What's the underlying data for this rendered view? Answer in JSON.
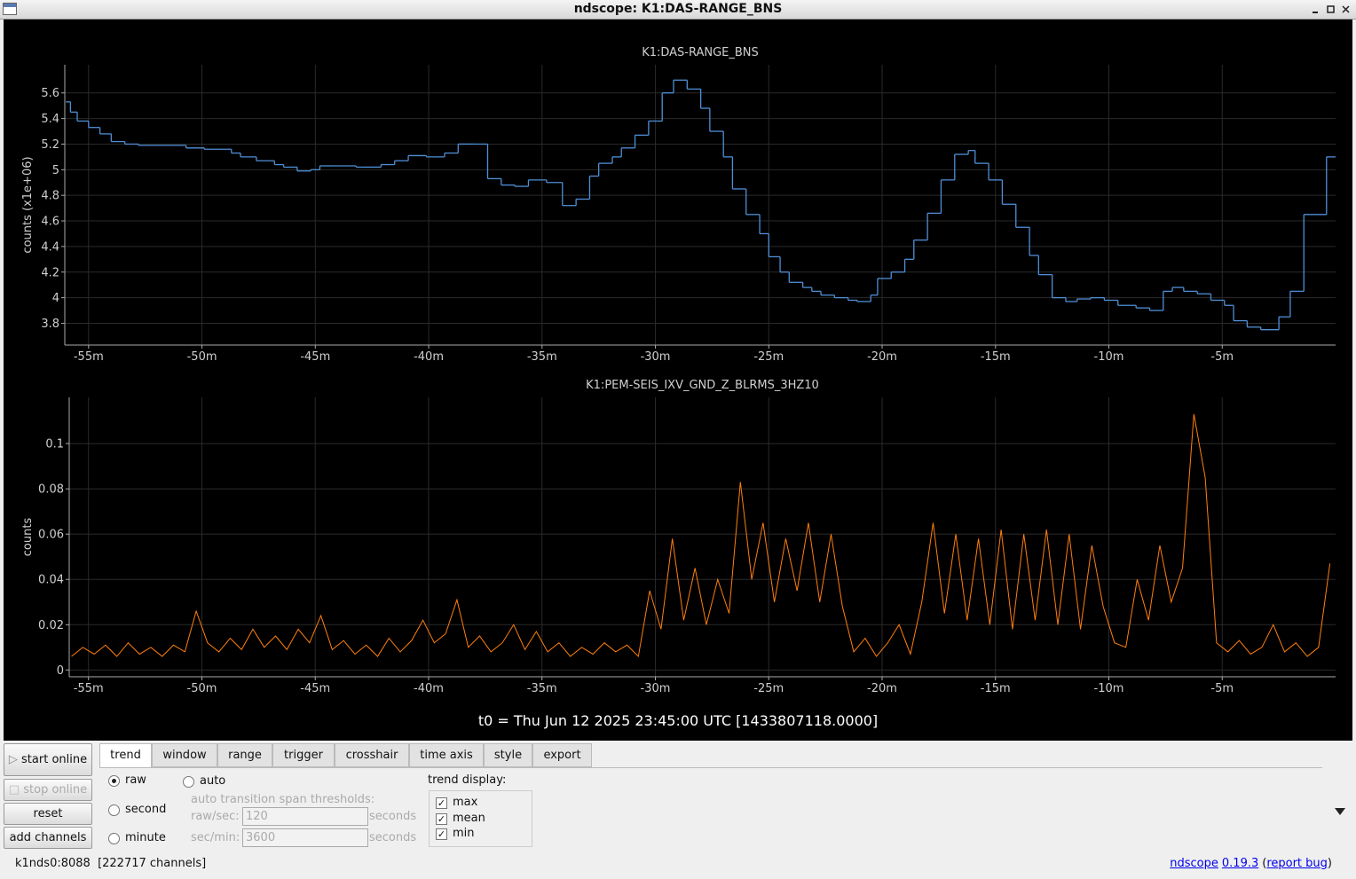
{
  "window": {
    "title": "ndscope: K1:DAS-RANGE_BNS"
  },
  "chart_data": [
    {
      "type": "step",
      "title": "K1:DAS-RANGE_BNS",
      "ylabel": "counts (x1e+06)",
      "color": "#4f8fd6",
      "x": [
        -56.0,
        -55.8,
        -55.5,
        -55.0,
        -54.5,
        -54.0,
        -53.4,
        -52.8,
        -50.7,
        -49.9,
        -48.7,
        -48.3,
        -47.6,
        -46.8,
        -46.4,
        -45.8,
        -45.2,
        -44.8,
        -44.2,
        -43.2,
        -42.9,
        -42.1,
        -41.5,
        -40.9,
        -40.1,
        -39.3,
        -38.7,
        -38.0,
        -37.4,
        -36.8,
        -36.2,
        -35.6,
        -34.8,
        -34.1,
        -33.5,
        -32.9,
        -32.5,
        -31.9,
        -31.5,
        -30.9,
        -30.3,
        -29.7,
        -29.2,
        -28.6,
        -28.0,
        -27.6,
        -27.0,
        -26.6,
        -26.0,
        -25.4,
        -25.0,
        -24.5,
        -24.1,
        -23.5,
        -23.1,
        -22.7,
        -22.1,
        -21.5,
        -21.1,
        -20.5,
        -20.2,
        -19.6,
        -19.0,
        -18.6,
        -18.0,
        -17.4,
        -16.8,
        -16.2,
        -15.9,
        -15.3,
        -14.7,
        -14.1,
        -13.5,
        -13.1,
        -12.5,
        -11.9,
        -11.4,
        -10.8,
        -10.2,
        -9.6,
        -8.8,
        -8.2,
        -7.6,
        -7.2,
        -6.7,
        -6.1,
        -5.5,
        -4.9,
        -4.5,
        -3.9,
        -3.3,
        -2.5,
        -2.0,
        -1.4,
        -0.4
      ],
      "values": [
        5.53,
        5.45,
        5.38,
        5.33,
        5.28,
        5.22,
        5.2,
        5.19,
        5.17,
        5.16,
        5.13,
        5.1,
        5.07,
        5.04,
        5.02,
        4.99,
        5.0,
        5.03,
        5.03,
        5.02,
        5.02,
        5.04,
        5.07,
        5.11,
        5.1,
        5.13,
        5.2,
        5.2,
        4.93,
        4.88,
        4.87,
        4.92,
        4.9,
        4.72,
        4.77,
        4.95,
        5.05,
        5.1,
        5.17,
        5.27,
        5.38,
        5.6,
        5.7,
        5.63,
        5.48,
        5.3,
        5.1,
        4.85,
        4.65,
        4.5,
        4.32,
        4.2,
        4.12,
        4.08,
        4.05,
        4.02,
        4.0,
        3.98,
        3.97,
        4.02,
        4.15,
        4.2,
        4.3,
        4.45,
        4.66,
        4.92,
        5.12,
        5.15,
        5.05,
        4.92,
        4.73,
        4.55,
        4.33,
        4.18,
        4.0,
        3.97,
        3.99,
        4.0,
        3.98,
        3.94,
        3.92,
        3.9,
        4.05,
        4.08,
        4.05,
        4.03,
        3.98,
        3.94,
        3.82,
        3.77,
        3.75,
        3.85,
        4.05,
        4.65,
        5.1
      ],
      "xlim": [
        -56.05,
        0
      ],
      "ylim": [
        3.63,
        5.82
      ],
      "xticks": [
        {
          "value": -55,
          "label": "-55m"
        },
        {
          "value": -50,
          "label": "-50m"
        },
        {
          "value": -45,
          "label": "-45m"
        },
        {
          "value": -40,
          "label": "-40m"
        },
        {
          "value": -35,
          "label": "-35m"
        },
        {
          "value": -30,
          "label": "-30m"
        },
        {
          "value": -25,
          "label": "-25m"
        },
        {
          "value": -20,
          "label": "-20m"
        },
        {
          "value": -15,
          "label": "-15m"
        },
        {
          "value": -10,
          "label": "-10m"
        },
        {
          "value": -5,
          "label": "-5m"
        }
      ],
      "yticks": [
        3.8,
        4,
        4.2,
        4.4,
        4.6,
        4.8,
        5,
        5.2,
        5.4,
        5.6
      ],
      "grid": true
    },
    {
      "type": "line",
      "title": "K1:PEM-SEIS_IXV_GND_Z_BLRMS_3HZ10",
      "ylabel": "counts",
      "color": "#ff7f0e",
      "x": [
        -55.75,
        -55.25,
        -54.75,
        -54.25,
        -53.75,
        -53.25,
        -52.75,
        -52.25,
        -51.75,
        -51.25,
        -50.75,
        -50.25,
        -49.75,
        -49.25,
        -48.75,
        -48.25,
        -47.75,
        -47.25,
        -46.75,
        -46.25,
        -45.75,
        -45.25,
        -44.75,
        -44.25,
        -43.75,
        -43.25,
        -42.75,
        -42.25,
        -41.75,
        -41.25,
        -40.75,
        -40.25,
        -39.75,
        -39.25,
        -38.75,
        -38.25,
        -37.75,
        -37.25,
        -36.75,
        -36.25,
        -35.75,
        -35.25,
        -34.75,
        -34.25,
        -33.75,
        -33.25,
        -32.75,
        -32.25,
        -31.75,
        -31.25,
        -30.75,
        -30.25,
        -29.75,
        -29.25,
        -28.75,
        -28.25,
        -27.75,
        -27.25,
        -26.75,
        -26.25,
        -25.75,
        -25.25,
        -24.75,
        -24.25,
        -23.75,
        -23.25,
        -22.75,
        -22.25,
        -21.75,
        -21.25,
        -20.75,
        -20.25,
        -19.75,
        -19.25,
        -18.75,
        -18.25,
        -17.75,
        -17.25,
        -16.75,
        -16.25,
        -15.75,
        -15.25,
        -14.75,
        -14.25,
        -13.75,
        -13.25,
        -12.75,
        -12.25,
        -11.75,
        -11.25,
        -10.75,
        -10.25,
        -9.75,
        -9.25,
        -8.75,
        -8.25,
        -7.75,
        -7.25,
        -6.75,
        -6.25,
        -5.75,
        -5.25,
        -4.75,
        -4.25,
        -3.75,
        -3.25,
        -2.75,
        -2.25,
        -1.75,
        -1.25,
        -0.75,
        -0.25
      ],
      "values": [
        0.006,
        0.01,
        0.007,
        0.011,
        0.006,
        0.012,
        0.007,
        0.01,
        0.006,
        0.011,
        0.008,
        0.026,
        0.012,
        0.008,
        0.014,
        0.009,
        0.018,
        0.01,
        0.015,
        0.009,
        0.018,
        0.012,
        0.024,
        0.009,
        0.013,
        0.007,
        0.011,
        0.006,
        0.014,
        0.008,
        0.013,
        0.022,
        0.012,
        0.016,
        0.031,
        0.01,
        0.015,
        0.008,
        0.012,
        0.02,
        0.009,
        0.017,
        0.008,
        0.012,
        0.006,
        0.01,
        0.007,
        0.012,
        0.008,
        0.011,
        0.006,
        0.035,
        0.018,
        0.058,
        0.022,
        0.045,
        0.02,
        0.04,
        0.025,
        0.083,
        0.04,
        0.065,
        0.03,
        0.058,
        0.035,
        0.065,
        0.03,
        0.06,
        0.028,
        0.008,
        0.014,
        0.006,
        0.012,
        0.02,
        0.007,
        0.03,
        0.065,
        0.025,
        0.06,
        0.022,
        0.058,
        0.02,
        0.062,
        0.018,
        0.06,
        0.022,
        0.062,
        0.02,
        0.06,
        0.018,
        0.055,
        0.028,
        0.012,
        0.01,
        0.04,
        0.022,
        0.055,
        0.03,
        0.045,
        0.113,
        0.085,
        0.012,
        0.008,
        0.013,
        0.007,
        0.01,
        0.02,
        0.008,
        0.012,
        0.006,
        0.01,
        0.047
      ],
      "xlim": [
        -55.85,
        0
      ],
      "ylim": [
        -0.003,
        0.1204
      ],
      "xticks": [
        {
          "value": -55,
          "label": "-55m"
        },
        {
          "value": -50,
          "label": "-50m"
        },
        {
          "value": -45,
          "label": "-45m"
        },
        {
          "value": -40,
          "label": "-40m"
        },
        {
          "value": -35,
          "label": "-35m"
        },
        {
          "value": -30,
          "label": "-30m"
        },
        {
          "value": -25,
          "label": "-25m"
        },
        {
          "value": -20,
          "label": "-20m"
        },
        {
          "value": -15,
          "label": "-15m"
        },
        {
          "value": -10,
          "label": "-10m"
        },
        {
          "value": -5,
          "label": "-5m"
        }
      ],
      "yticks": [
        0,
        0.02,
        0.04,
        0.06,
        0.08,
        0.1
      ],
      "grid": true
    }
  ],
  "t0": "t0 = Thu Jun 12 2025 23:45:00 UTC [1433807118.0000]",
  "buttons": [
    {
      "label": "start online",
      "enabled": true
    },
    {
      "label": "stop online",
      "enabled": false
    },
    {
      "label": "reset",
      "enabled": true
    },
    {
      "label": "add channels",
      "enabled": true
    }
  ],
  "tabs": {
    "labels": [
      "trend",
      "window",
      "range",
      "trigger",
      "crosshair",
      "time axis",
      "style",
      "export"
    ],
    "active": 0
  },
  "trend": {
    "modes": [
      "raw",
      "second",
      "minute",
      "auto"
    ],
    "selected": 0,
    "thresholds_title": "auto transition span thresholds:",
    "thresholds": [
      {
        "label": "raw/sec:",
        "value": "120",
        "unit": "seconds"
      },
      {
        "label": "sec/min:",
        "value": "3600",
        "unit": "seconds"
      }
    ],
    "display_title": "trend display:",
    "display": [
      {
        "label": "max",
        "checked": true
      },
      {
        "label": "mean",
        "checked": true
      },
      {
        "label": "min",
        "checked": true
      }
    ]
  },
  "status": "k1nds0:8088  [222717 channels]",
  "about": [
    {
      "text": "ndscope",
      "link": true
    },
    {
      "text": "0.19.3",
      "link": true
    },
    {
      "text": "(",
      "link": false
    },
    {
      "text": "report bug",
      "link": true
    },
    {
      "text": ")",
      "link": false
    }
  ]
}
